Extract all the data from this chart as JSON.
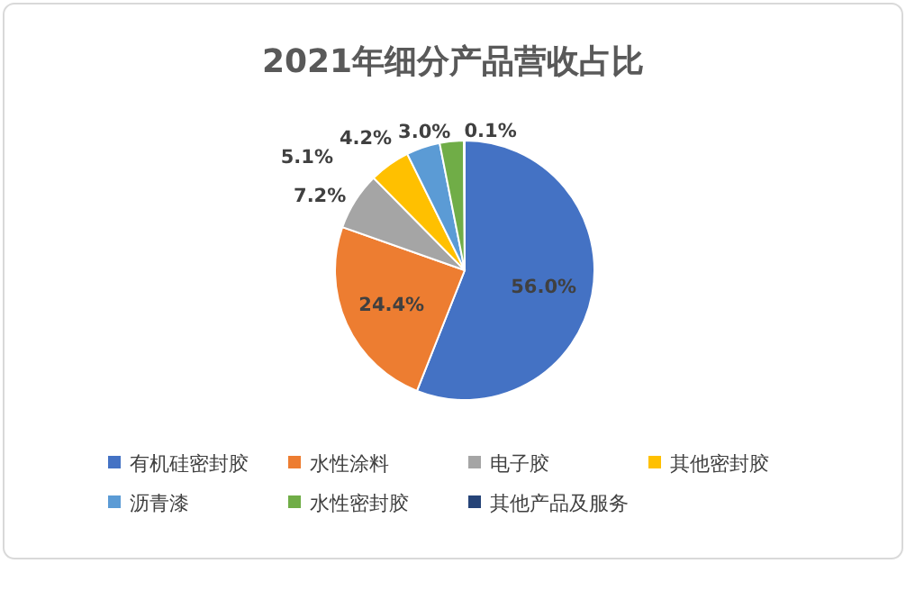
{
  "chart_data": {
    "type": "pie",
    "title": "2021年细分产品营收占比",
    "categories": [
      "有机硅密封胶",
      "水性涂料",
      "电子胶",
      "其他密封胶",
      "沥青漆",
      "水性密封胶",
      "其他产品及服务"
    ],
    "values": [
      56.0,
      24.4,
      7.2,
      5.1,
      4.2,
      3.0,
      0.1
    ],
    "colors": [
      "#4472c4",
      "#ed7d31",
      "#a5a5a5",
      "#ffc000",
      "#5b9bd5",
      "#70ad47",
      "#264478"
    ],
    "value_labels": [
      "56.0%",
      "24.4%",
      "7.2%",
      "5.1%",
      "4.2%",
      "3.0%",
      "0.1%"
    ],
    "legend": "bottom"
  }
}
